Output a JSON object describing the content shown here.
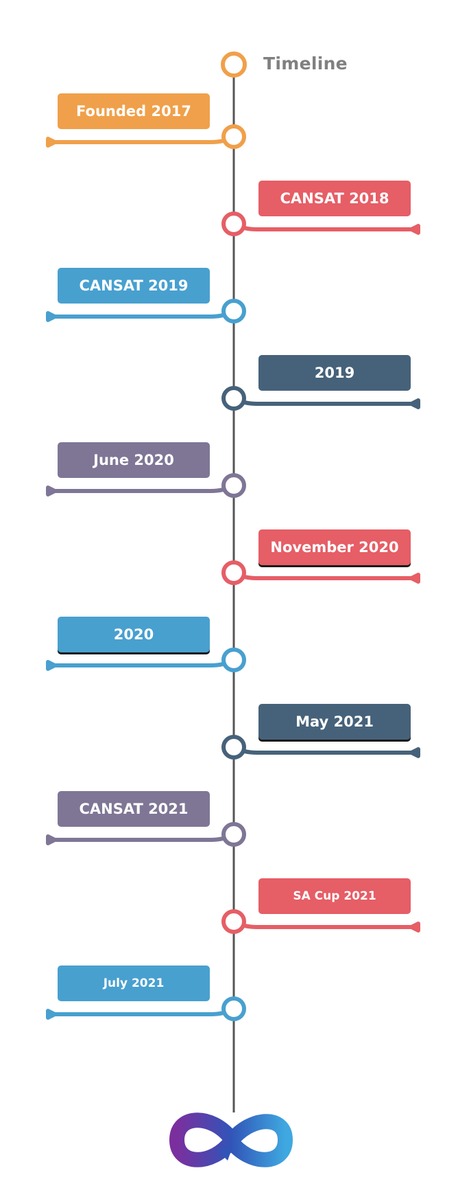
{
  "title": "Timeline",
  "colors": {
    "orange": "#F0A04A",
    "red": "#E65E66",
    "blue": "#48A0CF",
    "slate": "#46627A",
    "purple": "#7F7696",
    "line": "#555555",
    "logo_start": "#7B2F9E",
    "logo_mid": "#3154B8",
    "logo_end": "#3FA8E0"
  },
  "events": [
    {
      "label": "Founded 2017",
      "side": "left",
      "color": "orange"
    },
    {
      "label": "CANSAT 2018",
      "side": "right",
      "color": "red"
    },
    {
      "label": "CANSAT 2019",
      "side": "left",
      "color": "blue"
    },
    {
      "label": "2019",
      "side": "right",
      "color": "slate"
    },
    {
      "label": "June 2020",
      "side": "left",
      "color": "purple"
    },
    {
      "label": "November 2020",
      "side": "right",
      "color": "red"
    },
    {
      "label": "2020",
      "side": "left",
      "color": "blue"
    },
    {
      "label": "May 2021",
      "side": "right",
      "color": "slate"
    },
    {
      "label": "CANSAT 2021",
      "side": "left",
      "color": "purple"
    },
    {
      "label": "SA Cup 2021",
      "side": "right",
      "color": "red"
    },
    {
      "label": "July 2021",
      "side": "left",
      "color": "blue"
    }
  ],
  "logo_icon": "infinity-logo-icon"
}
